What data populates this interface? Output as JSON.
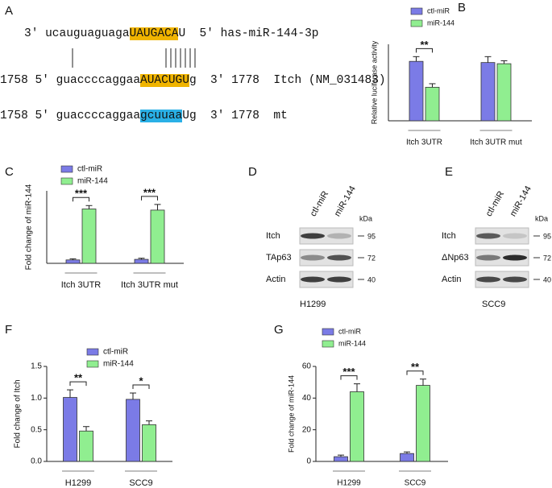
{
  "panel_a": {
    "label": "A",
    "rows": [
      {
        "prefix": "3′ ucauguaguaga",
        "match": "UAUGACA",
        "suffix": "U  5′ has-miR-144-3p",
        "color": "#f0b400"
      },
      {
        "prefix": "1758 5′ guaccccaggaa",
        "match": "AUACUGU",
        "suffix": "g  3′ 1778  Itch (NM_031483)",
        "color": "#f0b400"
      },
      {
        "prefix": "1758 5′ guaccccaggaa",
        "match": "gcuuaa",
        "suffix": "Ug  3′ 1778  mt",
        "color": "#2ab0e6"
      }
    ]
  },
  "blots": [
    {
      "label": "D",
      "columns": [
        "ctl-miR",
        "miR-144"
      ],
      "unit": "kDa",
      "rows": [
        {
          "name": "Itch",
          "marker": "95"
        },
        {
          "name": "TAp63",
          "marker": "72"
        },
        {
          "name": "Actin",
          "marker": "40"
        }
      ],
      "cell_line": "H1299"
    },
    {
      "label": "E",
      "columns": [
        "ctl-miR",
        "miR-144"
      ],
      "unit": "kDa",
      "rows": [
        {
          "name": "Itch",
          "marker": "95"
        },
        {
          "name": "ΔNp63",
          "marker": "72"
        },
        {
          "name": "Actin",
          "marker": "40"
        }
      ],
      "cell_line": "SCC9"
    }
  ],
  "chart_data": [
    {
      "type": "bar",
      "label": "B",
      "ylabel": "Relative luciferase activity",
      "categories": [
        "Itch 3UTR",
        "Itch 3UTR mut"
      ],
      "series": [
        {
          "name": "ctl-miR",
          "color": "#7b7be6",
          "values": [
            1.01,
            0.99
          ],
          "errors": [
            0.08,
            0.1
          ]
        },
        {
          "name": "miR-144",
          "color": "#90ee90",
          "values": [
            0.57,
            0.97
          ],
          "errors": [
            0.06,
            0.05
          ]
        }
      ],
      "significance": [
        "**",
        null
      ],
      "ylim": [
        0,
        1.3
      ]
    },
    {
      "type": "bar",
      "label": "C",
      "ylabel": "Fold change of miR-144",
      "categories": [
        "Itch 3UTR",
        "Itch 3UTR mut"
      ],
      "series": [
        {
          "name": "ctl-miR",
          "color": "#7b7be6",
          "values": [
            3,
            3.5
          ],
          "errors": [
            1,
            1
          ]
        },
        {
          "name": "miR-144",
          "color": "#90ee90",
          "values": [
            48,
            47
          ],
          "errors": [
            3,
            5
          ]
        }
      ],
      "significance": [
        "***",
        "***"
      ],
      "ylim": [
        0,
        64
      ]
    },
    {
      "type": "bar",
      "label": "F",
      "ylabel": "Fold change of Itch",
      "categories": [
        "H1299",
        "SCC9"
      ],
      "series": [
        {
          "name": "ctl-miR",
          "color": "#7b7be6",
          "values": [
            1.01,
            0.98
          ],
          "errors": [
            0.12,
            0.1
          ]
        },
        {
          "name": "miR-144",
          "color": "#90ee90",
          "values": [
            0.48,
            0.58
          ],
          "errors": [
            0.07,
            0.06
          ]
        }
      ],
      "significance": [
        "**",
        "*"
      ],
      "ylim": [
        0,
        1.5
      ],
      "yticks": [
        {
          "value": 0,
          "label": "0.0"
        },
        0.5,
        {
          "value": 1,
          "label": "1.0"
        },
        1.5
      ]
    },
    {
      "type": "bar",
      "label": "G",
      "ylabel": "Fold change of miR-144",
      "categories": [
        "H1299",
        "SCC9"
      ],
      "series": [
        {
          "name": "ctl-miR",
          "color": "#7b7be6",
          "values": [
            3,
            5
          ],
          "errors": [
            1,
            1
          ]
        },
        {
          "name": "miR-144",
          "color": "#90ee90",
          "values": [
            44,
            48
          ],
          "errors": [
            5,
            4
          ]
        }
      ],
      "significance": [
        "***",
        "**"
      ],
      "ylim": [
        0,
        60
      ],
      "yticks": [
        0,
        20,
        40,
        60
      ]
    }
  ]
}
